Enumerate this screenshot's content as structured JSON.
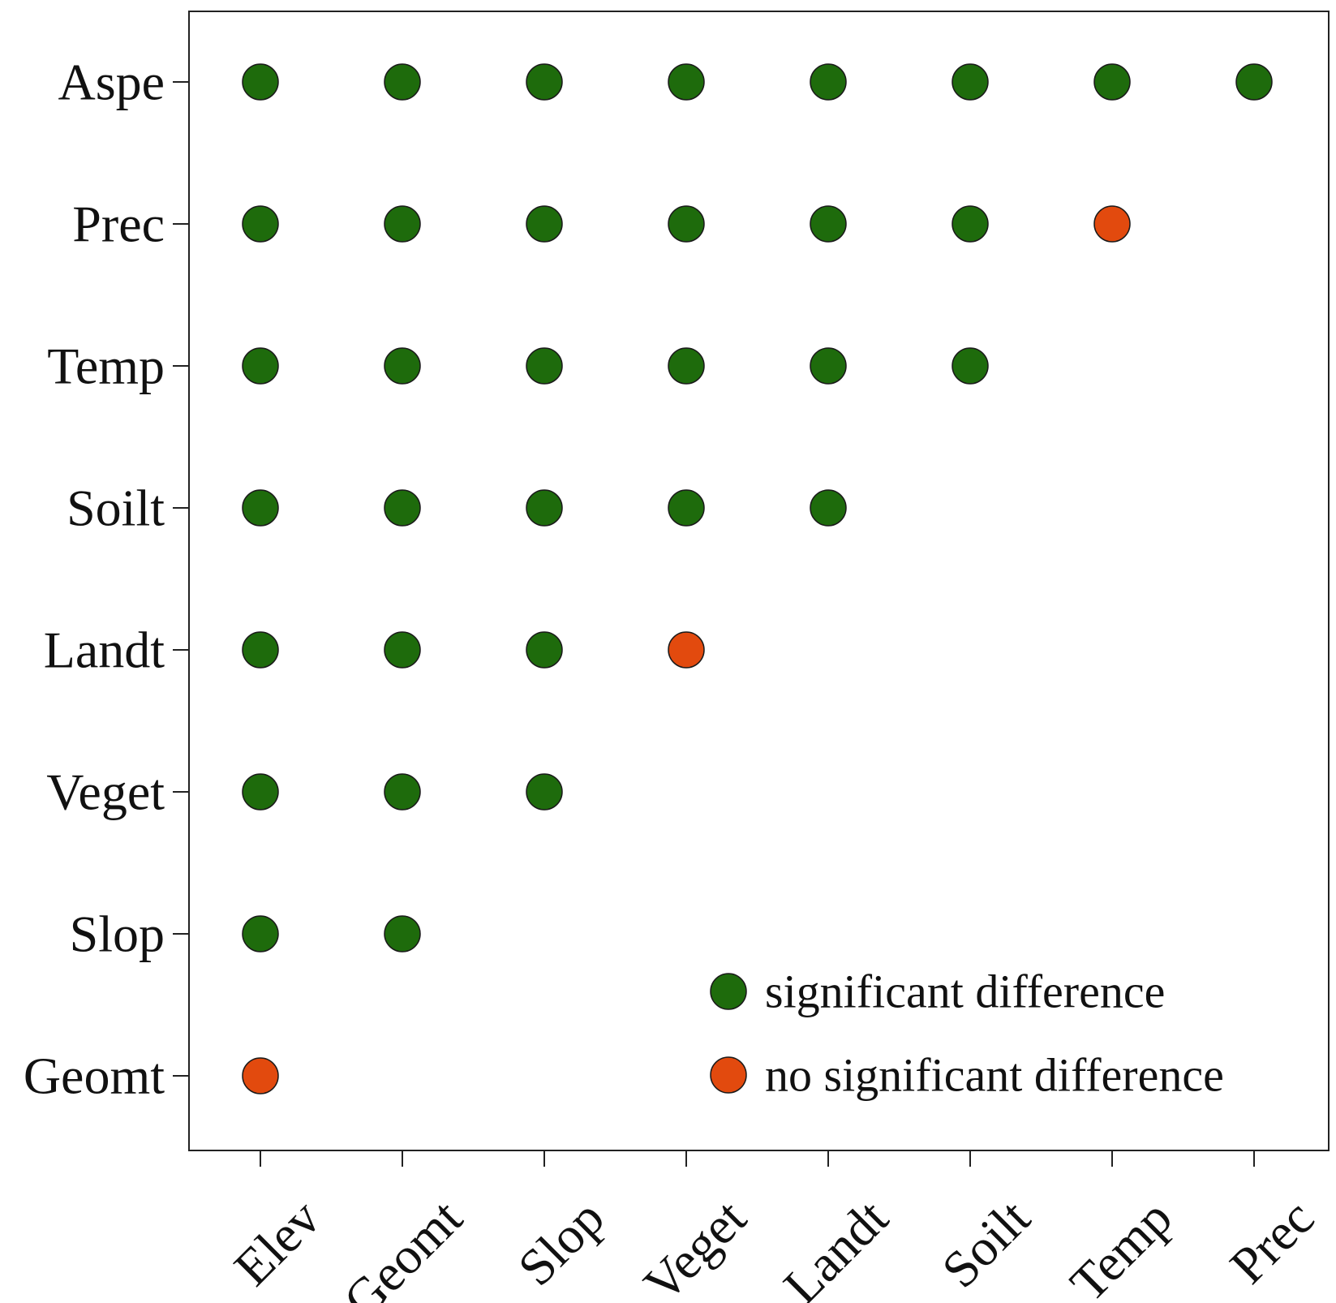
{
  "chart_data": {
    "type": "scatter",
    "title": "",
    "xlabel": "",
    "ylabel": "",
    "x_categories": [
      "Elev",
      "Geomt",
      "Slop",
      "Veget",
      "Landt",
      "Soilt",
      "Temp",
      "Prec"
    ],
    "y_categories": [
      "Geomt",
      "Slop",
      "Veget",
      "Landt",
      "Soilt",
      "Temp",
      "Prec",
      "Aspe"
    ],
    "points": [
      {
        "x": "Elev",
        "y": "Aspe",
        "result": "significant"
      },
      {
        "x": "Geomt",
        "y": "Aspe",
        "result": "significant"
      },
      {
        "x": "Slop",
        "y": "Aspe",
        "result": "significant"
      },
      {
        "x": "Veget",
        "y": "Aspe",
        "result": "significant"
      },
      {
        "x": "Landt",
        "y": "Aspe",
        "result": "significant"
      },
      {
        "x": "Soilt",
        "y": "Aspe",
        "result": "significant"
      },
      {
        "x": "Temp",
        "y": "Aspe",
        "result": "significant"
      },
      {
        "x": "Prec",
        "y": "Aspe",
        "result": "significant"
      },
      {
        "x": "Elev",
        "y": "Prec",
        "result": "significant"
      },
      {
        "x": "Geomt",
        "y": "Prec",
        "result": "significant"
      },
      {
        "x": "Slop",
        "y": "Prec",
        "result": "significant"
      },
      {
        "x": "Veget",
        "y": "Prec",
        "result": "significant"
      },
      {
        "x": "Landt",
        "y": "Prec",
        "result": "significant"
      },
      {
        "x": "Soilt",
        "y": "Prec",
        "result": "significant"
      },
      {
        "x": "Temp",
        "y": "Prec",
        "result": "not_significant"
      },
      {
        "x": "Elev",
        "y": "Temp",
        "result": "significant"
      },
      {
        "x": "Geomt",
        "y": "Temp",
        "result": "significant"
      },
      {
        "x": "Slop",
        "y": "Temp",
        "result": "significant"
      },
      {
        "x": "Veget",
        "y": "Temp",
        "result": "significant"
      },
      {
        "x": "Landt",
        "y": "Temp",
        "result": "significant"
      },
      {
        "x": "Soilt",
        "y": "Temp",
        "result": "significant"
      },
      {
        "x": "Elev",
        "y": "Soilt",
        "result": "significant"
      },
      {
        "x": "Geomt",
        "y": "Soilt",
        "result": "significant"
      },
      {
        "x": "Slop",
        "y": "Soilt",
        "result": "significant"
      },
      {
        "x": "Veget",
        "y": "Soilt",
        "result": "significant"
      },
      {
        "x": "Landt",
        "y": "Soilt",
        "result": "significant"
      },
      {
        "x": "Elev",
        "y": "Landt",
        "result": "significant"
      },
      {
        "x": "Geomt",
        "y": "Landt",
        "result": "significant"
      },
      {
        "x": "Slop",
        "y": "Landt",
        "result": "significant"
      },
      {
        "x": "Veget",
        "y": "Landt",
        "result": "not_significant"
      },
      {
        "x": "Elev",
        "y": "Veget",
        "result": "significant"
      },
      {
        "x": "Geomt",
        "y": "Veget",
        "result": "significant"
      },
      {
        "x": "Slop",
        "y": "Veget",
        "result": "significant"
      },
      {
        "x": "Elev",
        "y": "Slop",
        "result": "significant"
      },
      {
        "x": "Geomt",
        "y": "Slop",
        "result": "significant"
      },
      {
        "x": "Elev",
        "y": "Geomt",
        "result": "not_significant"
      }
    ],
    "legend": {
      "placement": "bottom-right",
      "entries": [
        {
          "key": "significant",
          "label": "significant difference",
          "color": "#1e6b0c"
        },
        {
          "key": "not_significant",
          "label": "no significant difference",
          "color": "#e24a0e"
        }
      ]
    },
    "grid": false
  }
}
